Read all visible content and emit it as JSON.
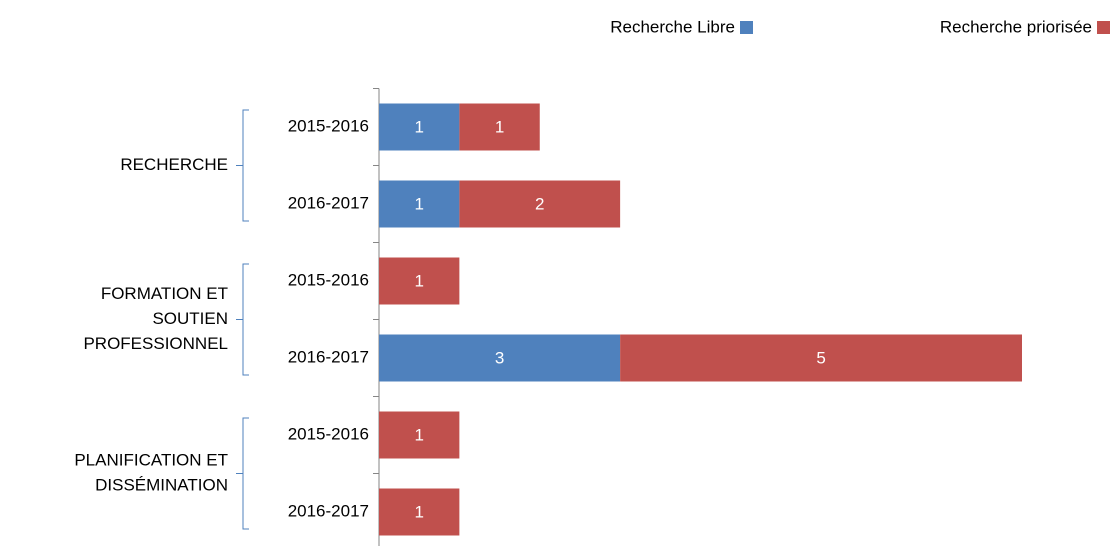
{
  "chart_data": {
    "type": "bar",
    "orientation": "horizontal",
    "stacked": true,
    "groups": [
      {
        "lines": [
          "RECHERCHE"
        ],
        "categories": [
          "2015-2016",
          "2016-2017"
        ]
      },
      {
        "lines": [
          "FORMATION ET",
          "SOUTIEN",
          "PROFESSIONNEL"
        ],
        "categories": [
          "2015-2016",
          "2016-2017"
        ]
      },
      {
        "lines": [
          "PLANIFICATION ET",
          "DISSÉMINATION"
        ],
        "categories": [
          "2015-2016",
          "2016-2017"
        ]
      }
    ],
    "series": [
      {
        "name": "Recherche Libre",
        "color": "#4f81bd",
        "values": [
          1,
          1,
          null,
          3,
          null,
          null
        ]
      },
      {
        "name": "Recherche priorisée",
        "color": "#c0504d",
        "values": [
          1,
          2,
          1,
          5,
          1,
          1
        ]
      }
    ],
    "legend": "top-right"
  }
}
